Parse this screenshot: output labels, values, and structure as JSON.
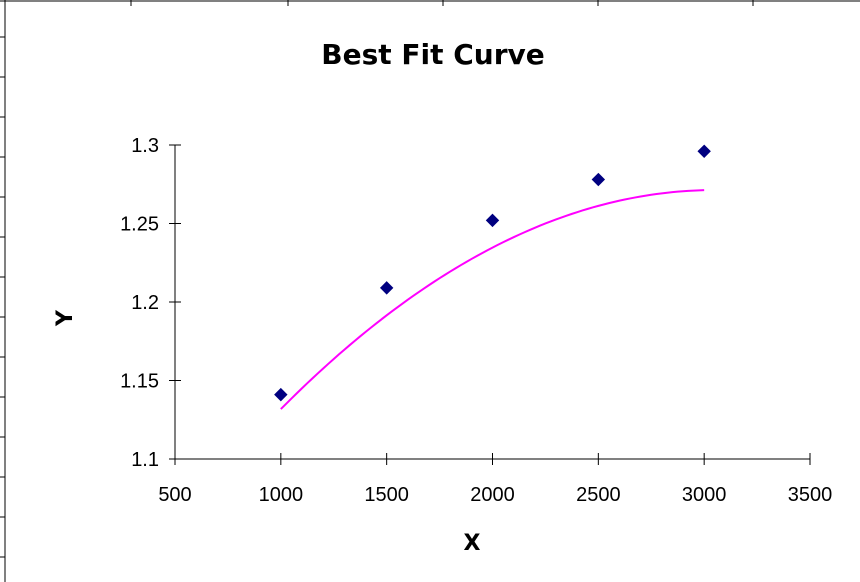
{
  "chart_data": {
    "type": "scatter",
    "title": "Best Fit Curve",
    "xlabel": "X",
    "ylabel": "Y",
    "xlim": [
      500,
      3500
    ],
    "ylim": [
      1.1,
      1.3
    ],
    "xticks": [
      "500",
      "1000",
      "1500",
      "2000",
      "2500",
      "3000",
      "3500"
    ],
    "yticks": [
      "1.1",
      "1.15",
      "1.2",
      "1.25",
      "1.3"
    ],
    "grid": false,
    "legend": "none",
    "series": [
      {
        "type": "scatter",
        "marker": "diamond",
        "color": "#000080",
        "x": [
          1000,
          1500,
          2000,
          2500,
          3000
        ],
        "y": [
          1.141,
          1.209,
          1.252,
          1.278,
          1.296
        ]
      }
    ],
    "trendline": {
      "type": "polynomial-2",
      "color": "#ff00ff",
      "x_range": [
        1000,
        3000
      ],
      "coefficients": [
        0.96265,
        0.000202286,
        -3.3143e-08
      ]
    }
  }
}
